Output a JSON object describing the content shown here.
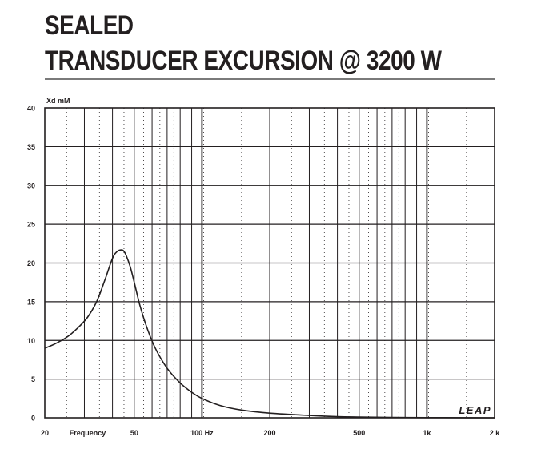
{
  "header": {
    "line1": "SEALED",
    "line2": "TRANSDUCER EXCURSION @ 3200 W"
  },
  "logo": "LEAP",
  "colors": {
    "line": "#231f20",
    "grid": "#231f20",
    "title_rule": "#7a7a7a"
  },
  "chart_data": {
    "type": "line",
    "title": "TRANSDUCER EXCURSION @ 3200 W",
    "xlabel": "Frequency",
    "ylabel": "Xd mM",
    "xscale": "log",
    "xlim": [
      20,
      2000
    ],
    "ylim": [
      0,
      40
    ],
    "grid": true,
    "x_ticks": [
      {
        "value": 20,
        "label": "20"
      },
      {
        "value": 50,
        "label": "50"
      },
      {
        "value": 100,
        "label": "100 Hz"
      },
      {
        "value": 200,
        "label": "200"
      },
      {
        "value": 500,
        "label": "500"
      },
      {
        "value": 1000,
        "label": "1k"
      },
      {
        "value": 2000,
        "label": "2 k"
      }
    ],
    "y_ticks": [
      0,
      5,
      10,
      15,
      20,
      25,
      30,
      35,
      40
    ],
    "series": [
      {
        "x": [
          20,
          22,
          25,
          28,
          31,
          34,
          37,
          40,
          42,
          44,
          45,
          46,
          48,
          50,
          53,
          57,
          62,
          70,
          80,
          90,
          100,
          120,
          150,
          200,
          300,
          400,
          500,
          700,
          1000,
          1500,
          2000
        ],
        "y": [
          9.0,
          9.5,
          10.4,
          11.6,
          13.0,
          15.0,
          17.8,
          20.6,
          21.5,
          21.7,
          21.5,
          21.0,
          19.5,
          17.5,
          14.5,
          11.6,
          9.0,
          6.4,
          4.5,
          3.3,
          2.5,
          1.6,
          1.0,
          0.6,
          0.3,
          0.15,
          0.1,
          0.05,
          0.02,
          0.01,
          0.0
        ]
      }
    ]
  }
}
